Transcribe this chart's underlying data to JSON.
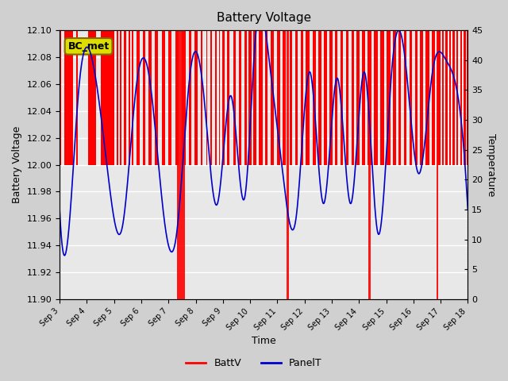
{
  "title": "Battery Voltage",
  "xlabel": "Time",
  "ylabel_left": "Battery Voltage",
  "ylabel_right": "Temperature",
  "xlim": [
    0,
    15
  ],
  "ylim_left": [
    11.9,
    12.1
  ],
  "ylim_right": [
    0,
    45
  ],
  "xtick_labels": [
    "Sep 3",
    "Sep 4",
    "Sep 5",
    "Sep 6",
    "Sep 7",
    "Sep 8",
    "Sep 9",
    "Sep 10",
    "Sep 11",
    "Sep 12",
    "Sep 13",
    "Sep 14",
    "Sep 15",
    "Sep 16",
    "Sep 17",
    "Sep 18"
  ],
  "xtick_positions": [
    0,
    1,
    2,
    3,
    4,
    5,
    6,
    7,
    8,
    9,
    10,
    11,
    12,
    13,
    14,
    15
  ],
  "ytick_left": [
    11.9,
    11.92,
    11.94,
    11.96,
    11.98,
    12.0,
    12.02,
    12.04,
    12.06,
    12.08,
    12.1
  ],
  "ytick_right": [
    0,
    5,
    10,
    15,
    20,
    25,
    30,
    35,
    40,
    45
  ],
  "fig_bg": "#d0d0d0",
  "plot_bg": "#e8e8e8",
  "grid_color": "white",
  "red_color": "#ff0000",
  "blue_color": "#0000cc",
  "annotation_text": "BC_met",
  "batt_high": 12.1,
  "batt_low": 12.0,
  "batt_deep_low": 11.9,
  "temp_min": 10,
  "temp_max": 45,
  "panel_period": 1.5,
  "legend_items": [
    "BattV",
    "PanelT"
  ],
  "batt_segments_high": [
    [
      0.0,
      0.05
    ],
    [
      0.18,
      0.5
    ],
    [
      0.62,
      0.68
    ],
    [
      1.05,
      1.35
    ],
    [
      1.5,
      2.0
    ],
    [
      2.1,
      2.15
    ],
    [
      2.2,
      2.27
    ],
    [
      2.35,
      2.45
    ],
    [
      2.52,
      2.58
    ],
    [
      2.65,
      2.72
    ],
    [
      2.82,
      2.95
    ],
    [
      3.05,
      3.15
    ],
    [
      3.25,
      3.38
    ],
    [
      3.5,
      3.62
    ],
    [
      3.75,
      3.88
    ],
    [
      4.0,
      4.12
    ],
    [
      4.25,
      4.38
    ],
    [
      4.5,
      4.62
    ],
    [
      4.75,
      4.85
    ],
    [
      4.95,
      5.08
    ],
    [
      5.2,
      5.25
    ],
    [
      5.38,
      5.42
    ],
    [
      5.55,
      5.6
    ],
    [
      5.72,
      5.78
    ],
    [
      5.85,
      5.9
    ],
    [
      5.98,
      6.05
    ],
    [
      6.15,
      6.25
    ],
    [
      6.38,
      6.48
    ],
    [
      6.58,
      6.68
    ],
    [
      6.78,
      6.88
    ],
    [
      6.95,
      7.05
    ],
    [
      7.12,
      7.22
    ],
    [
      7.32,
      7.45
    ],
    [
      7.55,
      7.65
    ],
    [
      7.75,
      7.88
    ],
    [
      8.0,
      8.1
    ],
    [
      8.2,
      8.32
    ],
    [
      8.45,
      8.55
    ],
    [
      8.65,
      8.75
    ],
    [
      8.85,
      8.95
    ],
    [
      9.05,
      9.18
    ],
    [
      9.3,
      9.42
    ],
    [
      9.52,
      9.62
    ],
    [
      9.72,
      9.82
    ],
    [
      9.92,
      10.02
    ],
    [
      10.12,
      10.22
    ],
    [
      10.32,
      10.42
    ],
    [
      10.52,
      10.62
    ],
    [
      10.72,
      10.82
    ],
    [
      10.92,
      11.02
    ],
    [
      11.12,
      11.22
    ],
    [
      11.32,
      11.45
    ],
    [
      11.55,
      11.68
    ],
    [
      11.78,
      11.92
    ],
    [
      12.02,
      12.15
    ],
    [
      12.25,
      12.35
    ],
    [
      12.45,
      12.55
    ],
    [
      12.65,
      12.75
    ],
    [
      12.85,
      12.95
    ],
    [
      13.05,
      13.15
    ],
    [
      13.25,
      13.35
    ],
    [
      13.45,
      13.58
    ],
    [
      13.68,
      13.78
    ],
    [
      13.88,
      14.0
    ],
    [
      14.05,
      14.12
    ],
    [
      14.18,
      14.25
    ],
    [
      14.32,
      14.38
    ],
    [
      14.45,
      14.52
    ],
    [
      14.58,
      14.65
    ],
    [
      14.72,
      14.78
    ],
    [
      14.85,
      14.92
    ],
    [
      14.95,
      15.0
    ]
  ],
  "batt_deep_segments": [
    [
      4.3,
      4.6
    ],
    [
      8.35,
      8.42
    ],
    [
      11.35,
      11.42
    ],
    [
      13.85,
      13.9
    ]
  ],
  "panel_t_keypoints_x": [
    0,
    0.3,
    0.7,
    1.2,
    1.8,
    2.3,
    2.8,
    3.3,
    3.8,
    4.3,
    4.8,
    5.3,
    5.8,
    6.3,
    6.8,
    7.2,
    7.7,
    8.2,
    8.7,
    9.2,
    9.7,
    10.2,
    10.7,
    11.2,
    11.7,
    12.2,
    12.7,
    13.2,
    13.7,
    14.2,
    14.7,
    15.0
  ],
  "panel_t_keypoints_y": [
    15,
    10,
    35,
    40,
    20,
    12,
    35,
    37,
    15,
    11,
    38,
    34,
    16,
    34,
    17,
    44,
    40,
    21,
    14,
    38,
    16,
    37,
    16,
    38,
    11,
    38,
    40,
    21,
    38,
    40,
    32,
    15
  ]
}
